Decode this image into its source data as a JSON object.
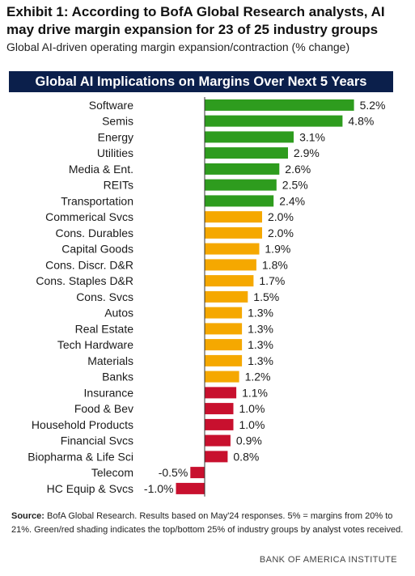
{
  "header": {
    "headline": "Exhibit 1: According to BofA Global Research analysts, AI may drive margin expansion for 23 of 25 industry groups",
    "subhead": "Global AI-driven operating margin expansion/contraction (% change)"
  },
  "colors": {
    "banner_bg": "#0b1f4b",
    "top": "#2e9c1e",
    "middle": "#f5a800",
    "bottom": "#c8102e"
  },
  "chart_data": {
    "type": "bar",
    "orientation": "horizontal",
    "title": "Global AI Implications on Margins Over Next 5 Years",
    "categories": [
      "Software",
      "Semis",
      "Energy",
      "Utilities",
      "Media & Ent.",
      "REITs",
      "Transportation",
      "Commerical Svcs",
      "Cons. Durables",
      "Capital Goods",
      "Cons. Discr. D&R",
      "Cons. Staples D&R",
      "Cons. Svcs",
      "Autos",
      "Real Estate",
      "Tech Hardware",
      "Materials",
      "Banks",
      "Insurance",
      "Food & Bev",
      "Household Products",
      "Financial Svcs",
      "Biopharma & Life Sci",
      "Telecom",
      "HC Equip & Svcs"
    ],
    "values": [
      5.2,
      4.8,
      3.1,
      2.9,
      2.6,
      2.5,
      2.4,
      2.0,
      2.0,
      1.9,
      1.8,
      1.7,
      1.5,
      1.3,
      1.3,
      1.3,
      1.3,
      1.2,
      1.1,
      1.0,
      1.0,
      0.9,
      0.8,
      -0.5,
      -1.0
    ],
    "value_labels": [
      "5.2%",
      "4.8%",
      "3.1%",
      "2.9%",
      "2.6%",
      "2.5%",
      "2.4%",
      "2.0%",
      "2.0%",
      "1.9%",
      "1.8%",
      "1.7%",
      "1.5%",
      "1.3%",
      "1.3%",
      "1.3%",
      "1.3%",
      "1.2%",
      "1.1%",
      "1.0%",
      "1.0%",
      "0.9%",
      "0.8%",
      "-0.5%",
      "-1.0%"
    ],
    "groups": [
      "top",
      "top",
      "top",
      "top",
      "top",
      "top",
      "top",
      "middle",
      "middle",
      "middle",
      "middle",
      "middle",
      "middle",
      "middle",
      "middle",
      "middle",
      "middle",
      "middle",
      "bottom",
      "bottom",
      "bottom",
      "bottom",
      "bottom",
      "bottom",
      "bottom"
    ],
    "xlim": [
      -1.0,
      5.2
    ],
    "grid": false,
    "legend": "none"
  },
  "footer": {
    "source_label": "Source:",
    "source_text": " BofA Global Research. Results based on May'24 responses. 5% = margins from 20% to 21%. Green/red shading indicates the top/bottom 25% of industry groups by analyst votes received.",
    "brand": "BANK OF AMERICA INSTITUTE"
  }
}
